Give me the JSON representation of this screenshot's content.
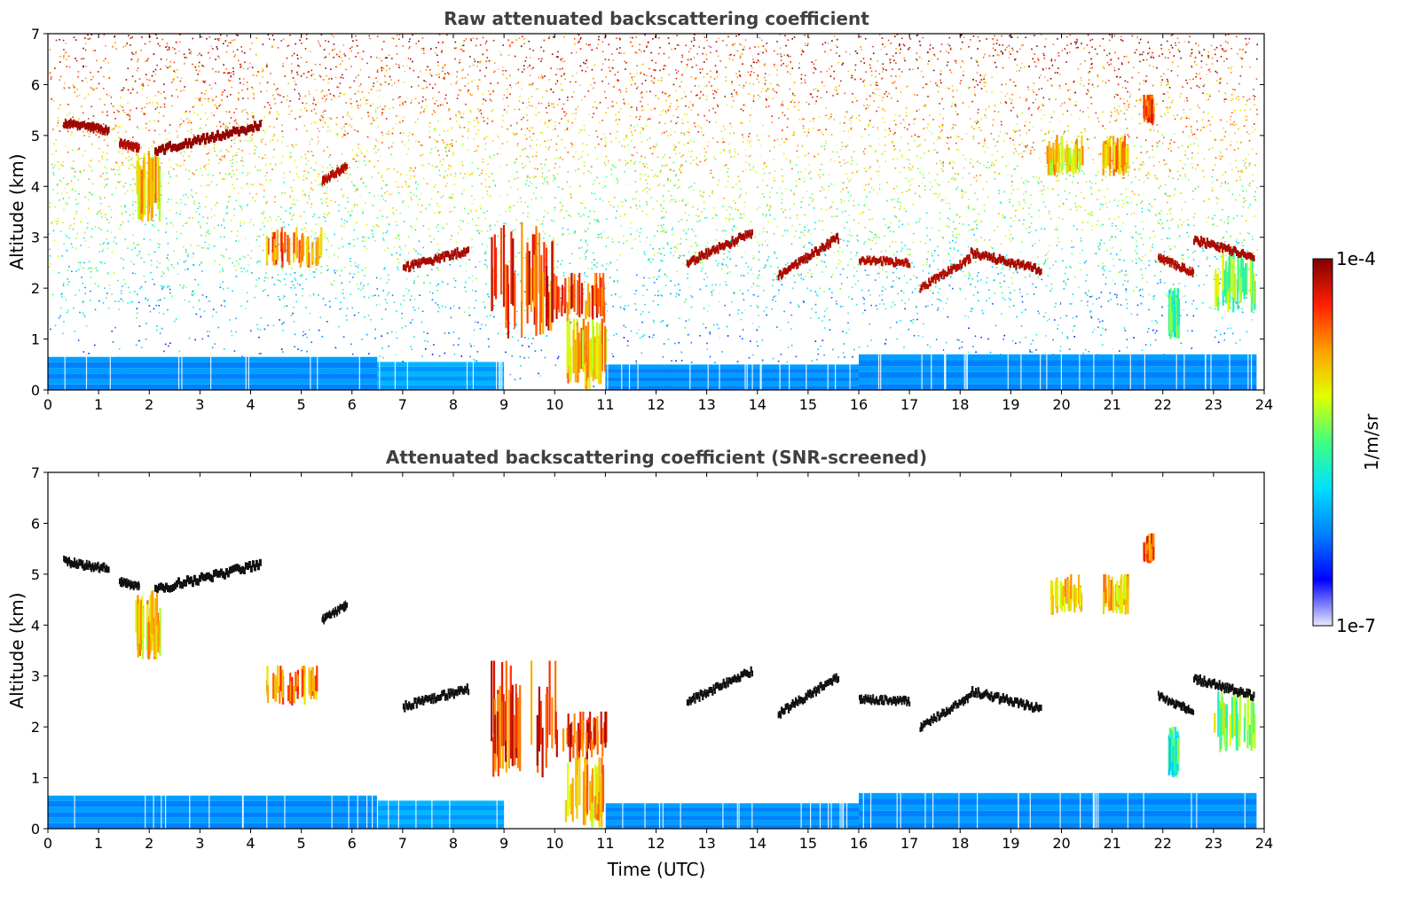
{
  "chart_data": [
    {
      "type": "heatmap",
      "title": "Raw attenuated backscattering coefficient",
      "xlabel": "",
      "ylabel": "Altitude (km)",
      "xlim": [
        0,
        24
      ],
      "ylim": [
        0,
        7
      ],
      "xticks": [
        "0",
        "1",
        "2",
        "3",
        "4",
        "5",
        "6",
        "7",
        "8",
        "9",
        "10",
        "11",
        "12",
        "13",
        "14",
        "15",
        "16",
        "17",
        "18",
        "19",
        "20",
        "21",
        "22",
        "23",
        "24"
      ],
      "yticks": [
        "0",
        "1",
        "2",
        "3",
        "4",
        "5",
        "6",
        "7"
      ],
      "time_end": 23.85,
      "boundary_layer": [
        {
          "x": [
            0,
            6.5
          ],
          "top_km": 0.65,
          "level": 0.25
        },
        {
          "x": [
            6.5,
            9.0
          ],
          "top_km": 0.55,
          "level": 0.28
        },
        {
          "x": [
            11.0,
            16.0
          ],
          "top_km": 0.5,
          "level": 0.25
        },
        {
          "x": [
            16.0,
            23.85
          ],
          "top_km": 0.7,
          "level": 0.25
        }
      ],
      "clouds": [
        {
          "x": [
            0.3,
            1.2
          ],
          "y": [
            5.25,
            5.1
          ],
          "width_km": 0.12,
          "level": 0.97
        },
        {
          "x": [
            1.4,
            1.8
          ],
          "y": [
            4.85,
            4.75
          ],
          "width_km": 0.1,
          "level": 0.95
        },
        {
          "x": [
            2.1,
            4.2
          ],
          "y": [
            4.7,
            5.2
          ],
          "width_km": 0.14,
          "level": 0.98
        },
        {
          "x": [
            5.4,
            5.9
          ],
          "y": [
            4.1,
            4.4
          ],
          "width_km": 0.1,
          "level": 0.95
        },
        {
          "x": [
            7.0,
            8.3
          ],
          "y": [
            2.4,
            2.75
          ],
          "width_km": 0.12,
          "level": 0.96
        },
        {
          "x": [
            12.6,
            13.9
          ],
          "y": [
            2.5,
            3.1
          ],
          "width_km": 0.12,
          "level": 0.96
        },
        {
          "x": [
            14.4,
            15.6
          ],
          "y": [
            2.25,
            3.0
          ],
          "width_km": 0.12,
          "level": 0.96
        },
        {
          "x": [
            16.0,
            17.0
          ],
          "y": [
            2.55,
            2.5
          ],
          "width_km": 0.1,
          "level": 0.95
        },
        {
          "x": [
            17.2,
            18.2
          ],
          "y": [
            2.0,
            2.6
          ],
          "width_km": 0.1,
          "level": 0.95
        },
        {
          "x": [
            18.2,
            19.6
          ],
          "y": [
            2.7,
            2.35
          ],
          "width_km": 0.12,
          "level": 0.96
        },
        {
          "x": [
            21.9,
            22.6
          ],
          "y": [
            2.6,
            2.3
          ],
          "width_km": 0.1,
          "level": 0.95
        },
        {
          "x": [
            22.6,
            23.8
          ],
          "y": [
            2.95,
            2.6
          ],
          "width_km": 0.12,
          "level": 0.96
        }
      ],
      "virga": [
        {
          "x": [
            1.7,
            2.2
          ],
          "y": [
            3.3,
            4.7
          ],
          "level": 0.7
        },
        {
          "x": [
            4.3,
            5.4
          ],
          "y": [
            2.4,
            3.2
          ],
          "level": 0.78
        },
        {
          "x": [
            19.7,
            20.4
          ],
          "y": [
            4.2,
            5.0
          ],
          "level": 0.68
        },
        {
          "x": [
            20.8,
            21.3
          ],
          "y": [
            4.2,
            5.0
          ],
          "level": 0.72
        },
        {
          "x": [
            21.6,
            21.8
          ],
          "y": [
            5.2,
            5.8
          ],
          "level": 0.8
        },
        {
          "x": [
            22.1,
            22.3
          ],
          "y": [
            1.0,
            2.0
          ],
          "level": 0.45
        },
        {
          "x": [
            23.0,
            23.8
          ],
          "y": [
            1.5,
            2.7
          ],
          "level": 0.55
        },
        {
          "x": [
            8.7,
            10.0
          ],
          "y": [
            1.0,
            3.3
          ],
          "level": 0.85
        },
        {
          "x": [
            10.0,
            11.0
          ],
          "y": [
            1.3,
            2.3
          ],
          "level": 0.85
        },
        {
          "x": [
            10.2,
            11.0
          ],
          "y": [
            0.0,
            1.4
          ],
          "level": 0.7
        }
      ]
    },
    {
      "type": "heatmap",
      "title": "Attenuated backscattering coefficient (SNR-screened)",
      "xlabel": "Time (UTC)",
      "ylabel": "Altitude (km)",
      "xlim": [
        0,
        24
      ],
      "ylim": [
        0,
        7
      ],
      "xticks": [
        "0",
        "1",
        "2",
        "3",
        "4",
        "5",
        "6",
        "7",
        "8",
        "9",
        "10",
        "11",
        "12",
        "13",
        "14",
        "15",
        "16",
        "17",
        "18",
        "19",
        "20",
        "21",
        "22",
        "23",
        "24"
      ],
      "yticks": [
        "0",
        "1",
        "2",
        "3",
        "4",
        "5",
        "6",
        "7"
      ]
    }
  ],
  "colorbar": {
    "label": "1/m/sr",
    "max_label": "1e-4",
    "min_label": "1e-7",
    "colormap": [
      "#e8e8ff",
      "#0000ff",
      "#0080ff",
      "#00e0ff",
      "#40ff80",
      "#e0ff00",
      "#ffa000",
      "#ff2000",
      "#800000"
    ]
  }
}
